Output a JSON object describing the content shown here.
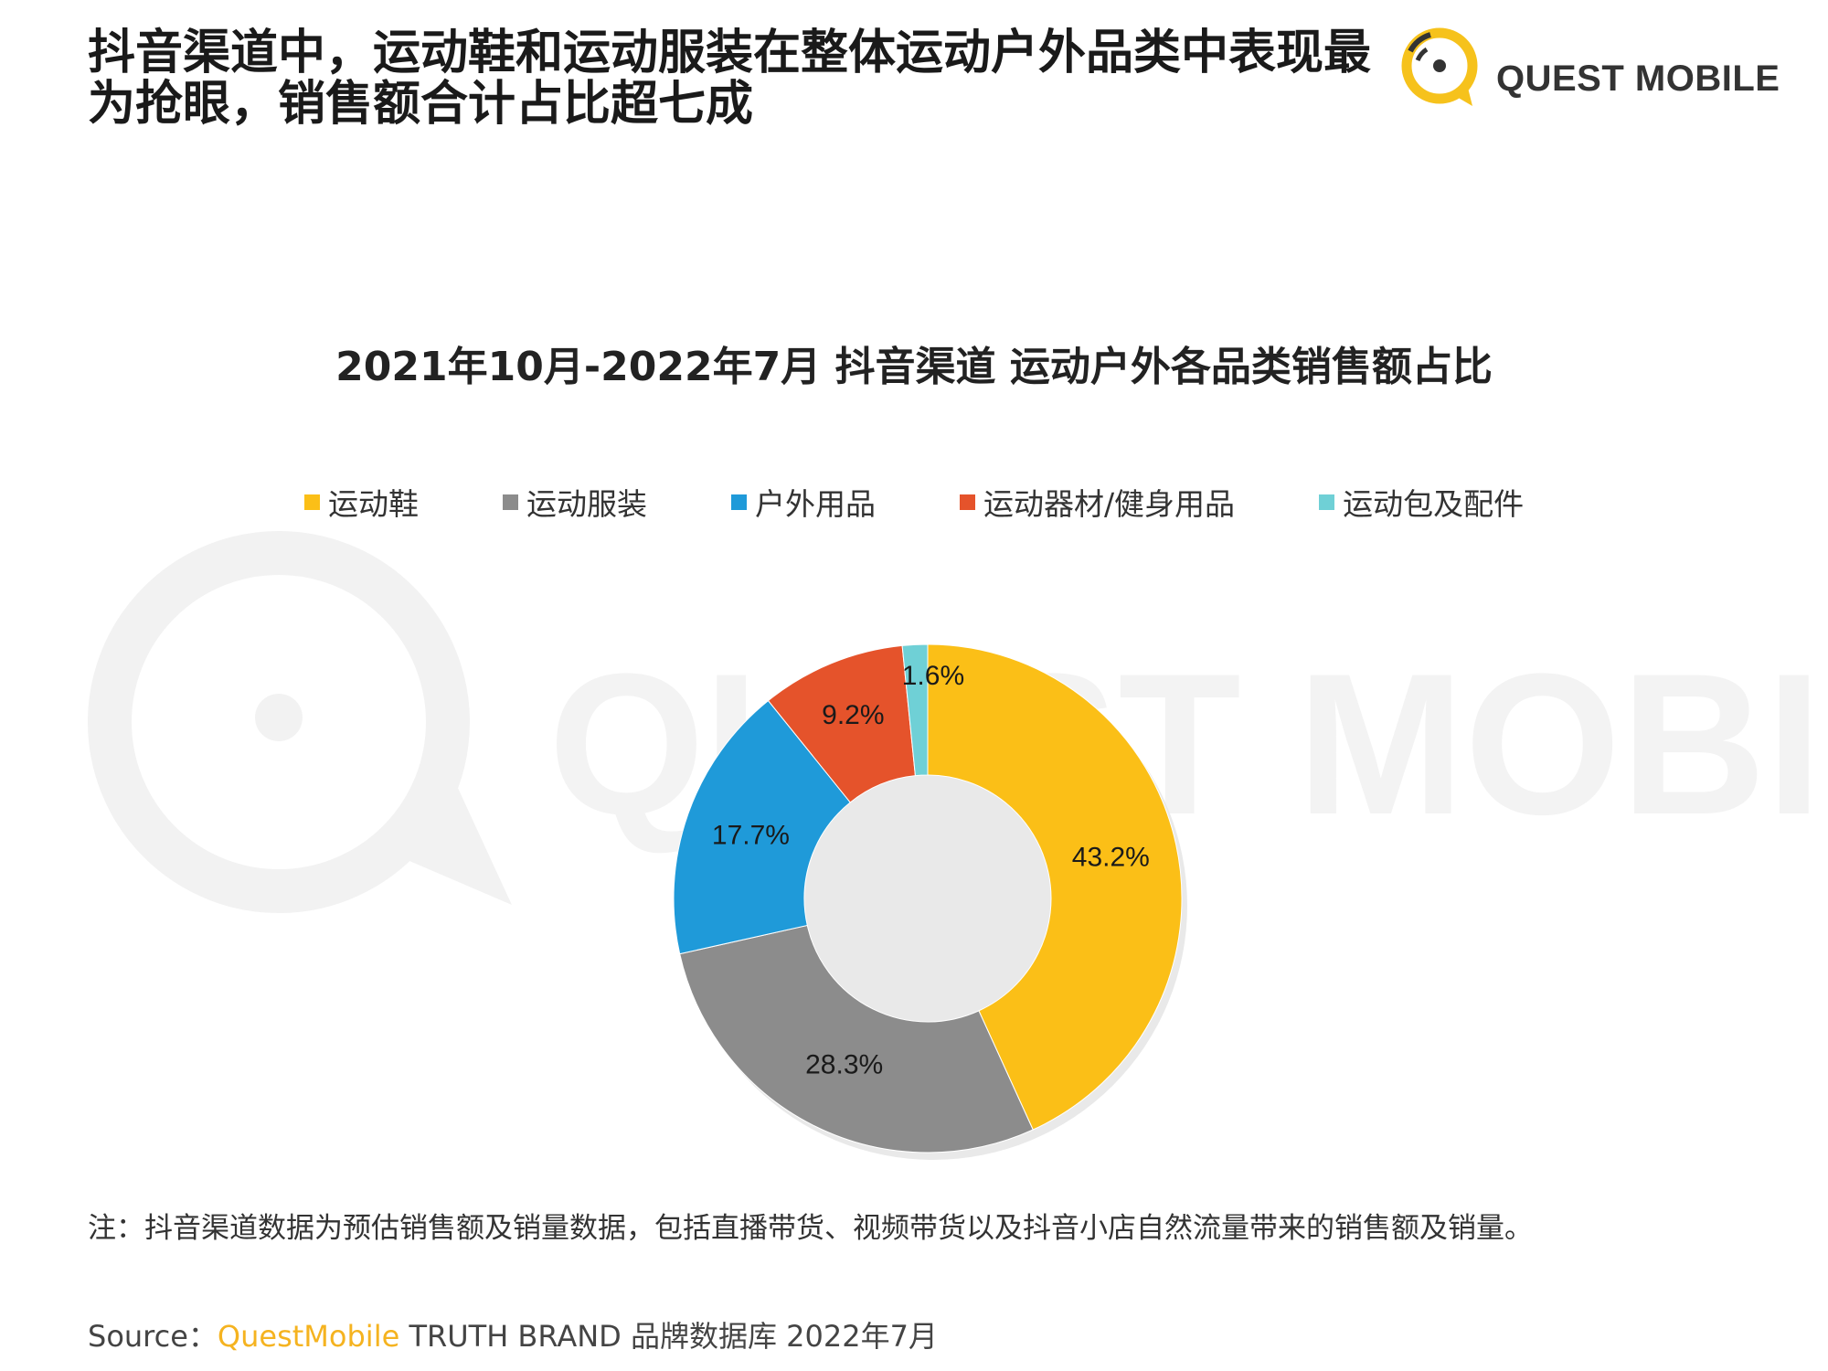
{
  "header": {
    "headline": "抖音渠道中，运动鞋和运动服装在整体运动户外品类中表现最为抢眼，销售额合计占比超七成",
    "logo_text": "QUEST MOBILE"
  },
  "chart_data": {
    "type": "pie",
    "style": "donut",
    "title": "2021年10月-2022年7月 抖音渠道 运动户外各品类销售额占比",
    "legend_position": "top",
    "series": [
      {
        "name": "运动鞋",
        "value": 43.2,
        "label": "43.2%",
        "color": "#fbbf17"
      },
      {
        "name": "运动服装",
        "value": 28.3,
        "label": "28.3%",
        "color": "#8c8c8c"
      },
      {
        "name": "户外用品",
        "value": 17.7,
        "label": "17.7%",
        "color": "#1f9ad9"
      },
      {
        "name": "运动器材/健身用品",
        "value": 9.2,
        "label": "9.2%",
        "color": "#e5532b"
      },
      {
        "name": "运动包及配件",
        "value": 1.6,
        "label": "1.6%",
        "color": "#6fd0d6"
      }
    ]
  },
  "footer": {
    "note": "注：抖音渠道数据为预估销售额及销量数据，包括直播带货、视频带货以及抖音小店自然流量带来的销售额及销量。",
    "source_prefix": "Source：",
    "source_brand": "QuestMobile",
    "source_rest": " TRUTH BRAND 品牌数据库 2022年7月"
  }
}
